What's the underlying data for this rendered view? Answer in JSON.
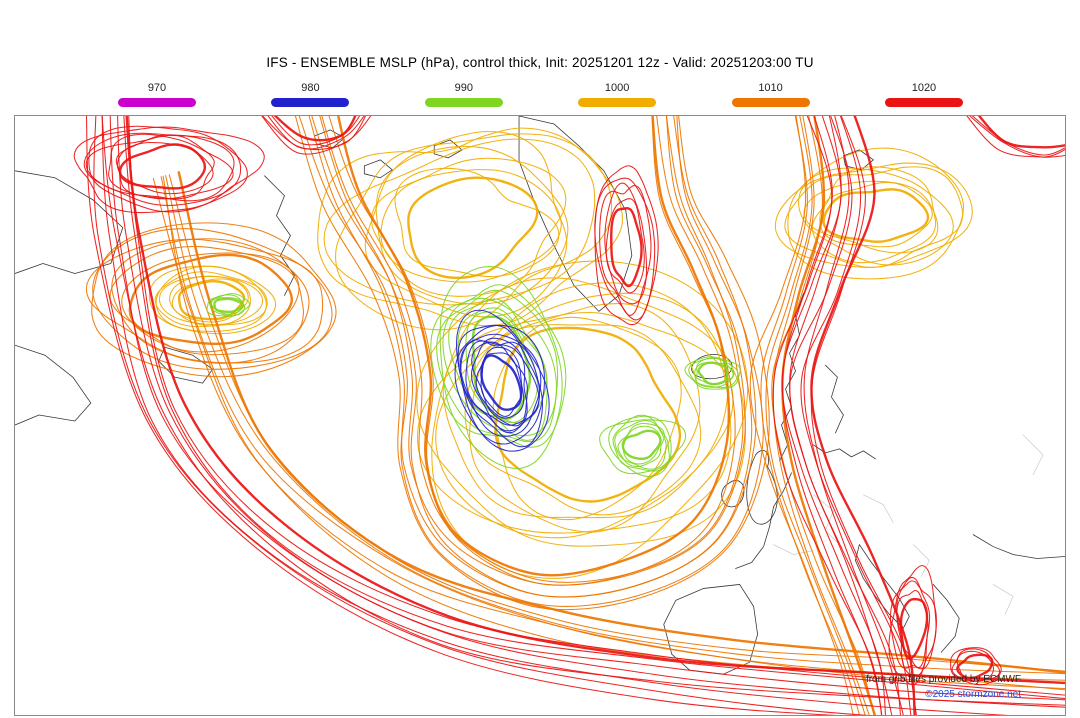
{
  "header": {
    "title": "IFS - ENSEMBLE MSLP (hPa), control thick, Init: 20251201 12z - Valid: 20251203:00 TU"
  },
  "legend": {
    "items": [
      {
        "label": "970",
        "color": "#cc00cc"
      },
      {
        "label": "980",
        "color": "#2222cc"
      },
      {
        "label": "990",
        "color": "#7fd622"
      },
      {
        "label": "1000",
        "color": "#f0ad00"
      },
      {
        "label": "1010",
        "color": "#ee7500"
      },
      {
        "label": "1020",
        "color": "#ea1212"
      }
    ]
  },
  "map": {
    "credit_line1": "from grib files provided by ECMWF",
    "credit_line2": "©2025 stormzone.net",
    "credit_color": "#1f4fd8",
    "coastline_color": "#222222"
  },
  "chart_data": {
    "type": "map",
    "title": "IFS - ENSEMBLE MSLP (hPa), control thick, Init: 20251201 12z - Valid: 20251203:00 TU",
    "model": "IFS - ENSEMBLE",
    "variable": "MSLP",
    "unit": "hPa",
    "contour_levels": [
      970,
      980,
      990,
      1000,
      1010,
      1020
    ],
    "level_colors": [
      "#cc00cc",
      "#2222cc",
      "#7fd622",
      "#f0ad00",
      "#ee7500",
      "#ea1212"
    ],
    "init": "20251201 12z",
    "valid": "20251203:00 TU",
    "legend_position": "top"
  }
}
